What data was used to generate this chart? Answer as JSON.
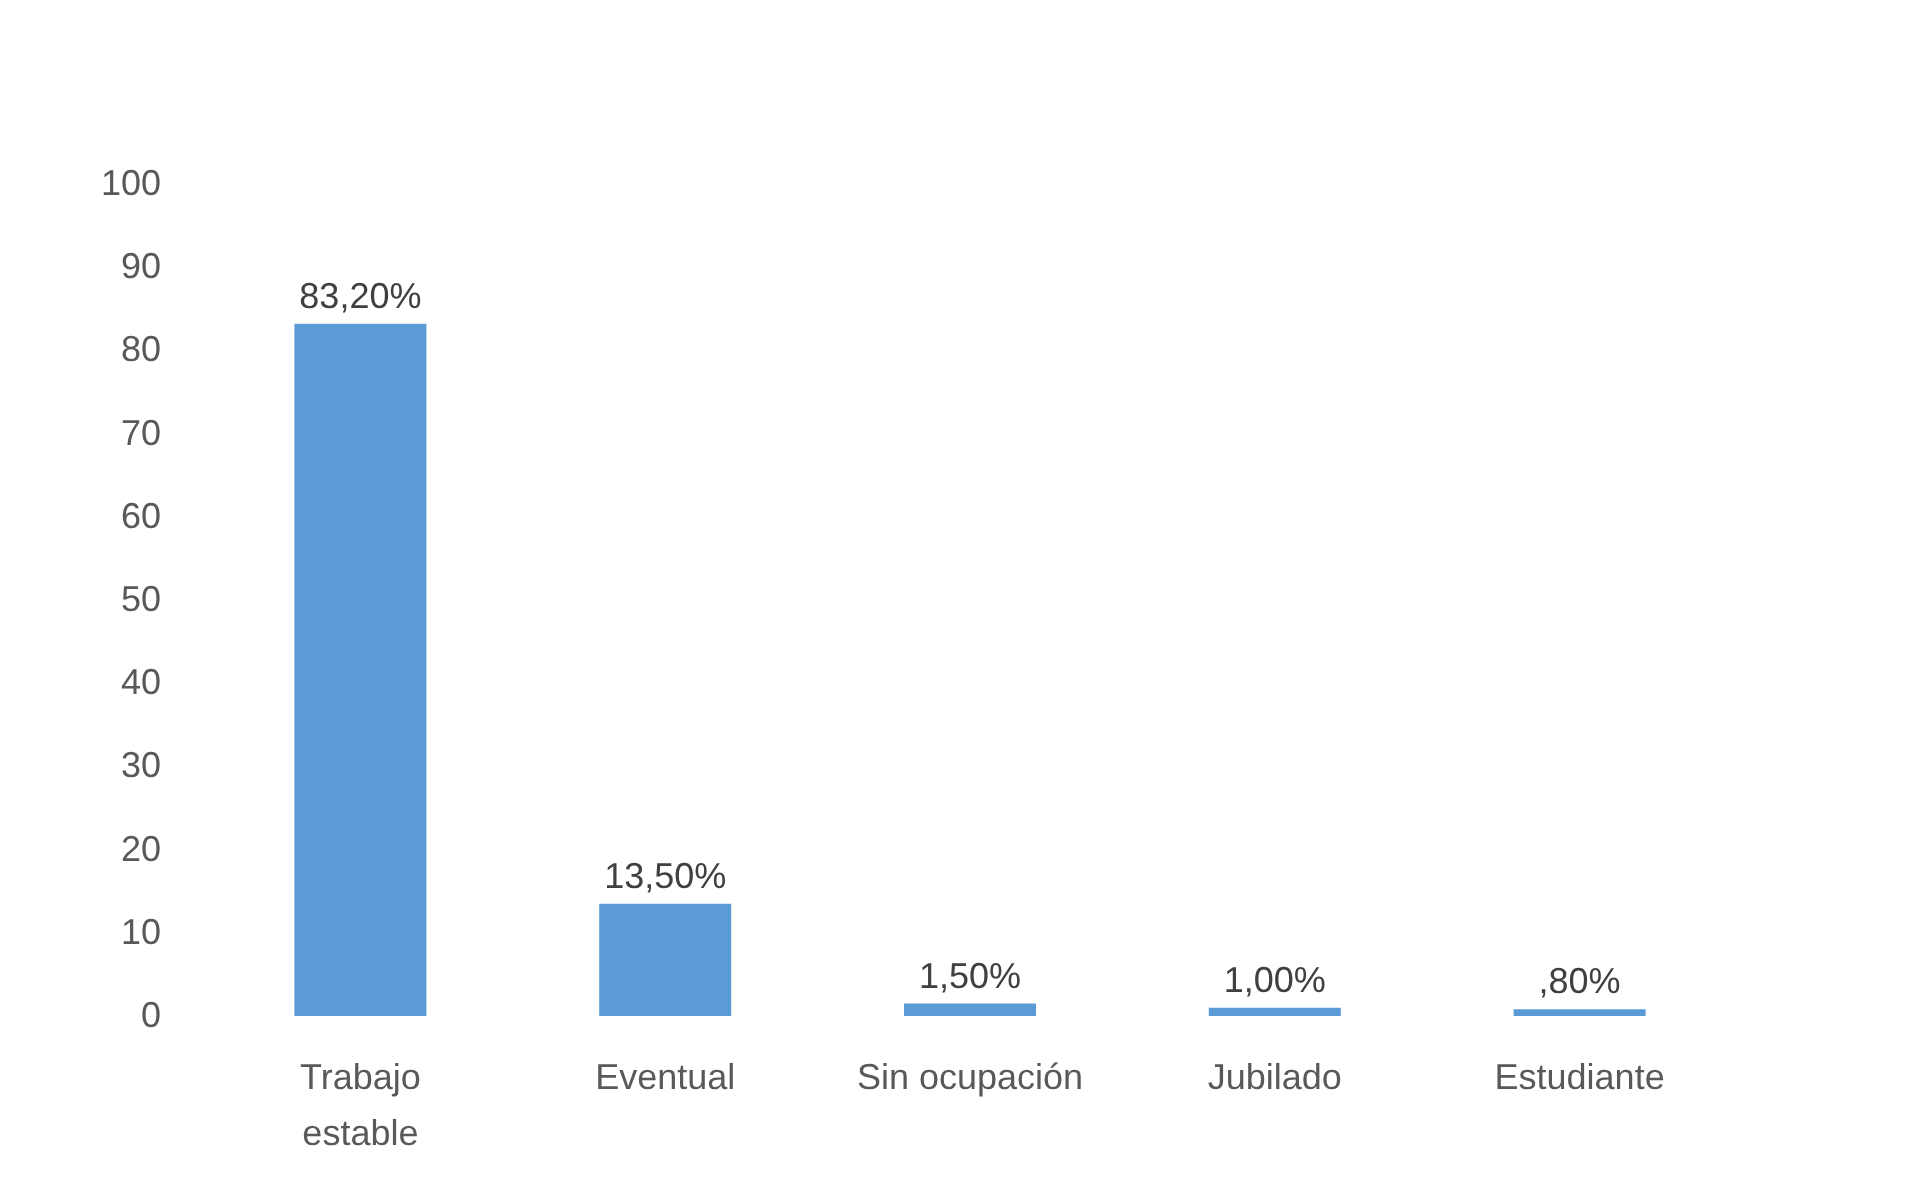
{
  "chart_data": {
    "type": "bar",
    "categories": [
      "Trabajo estable",
      "Eventual",
      "Sin ocupación",
      "Jubilado",
      "Estudiante"
    ],
    "values": [
      83.2,
      13.5,
      1.5,
      1.0,
      0.8
    ],
    "value_labels": [
      "83,20%",
      "13,50%",
      "1,50%",
      "1,00%",
      ",80%"
    ],
    "color": "#5b9bd5",
    "ylim": [
      0,
      100
    ],
    "yticks": [
      0,
      10,
      20,
      30,
      40,
      50,
      60,
      70,
      80,
      90,
      100
    ]
  }
}
